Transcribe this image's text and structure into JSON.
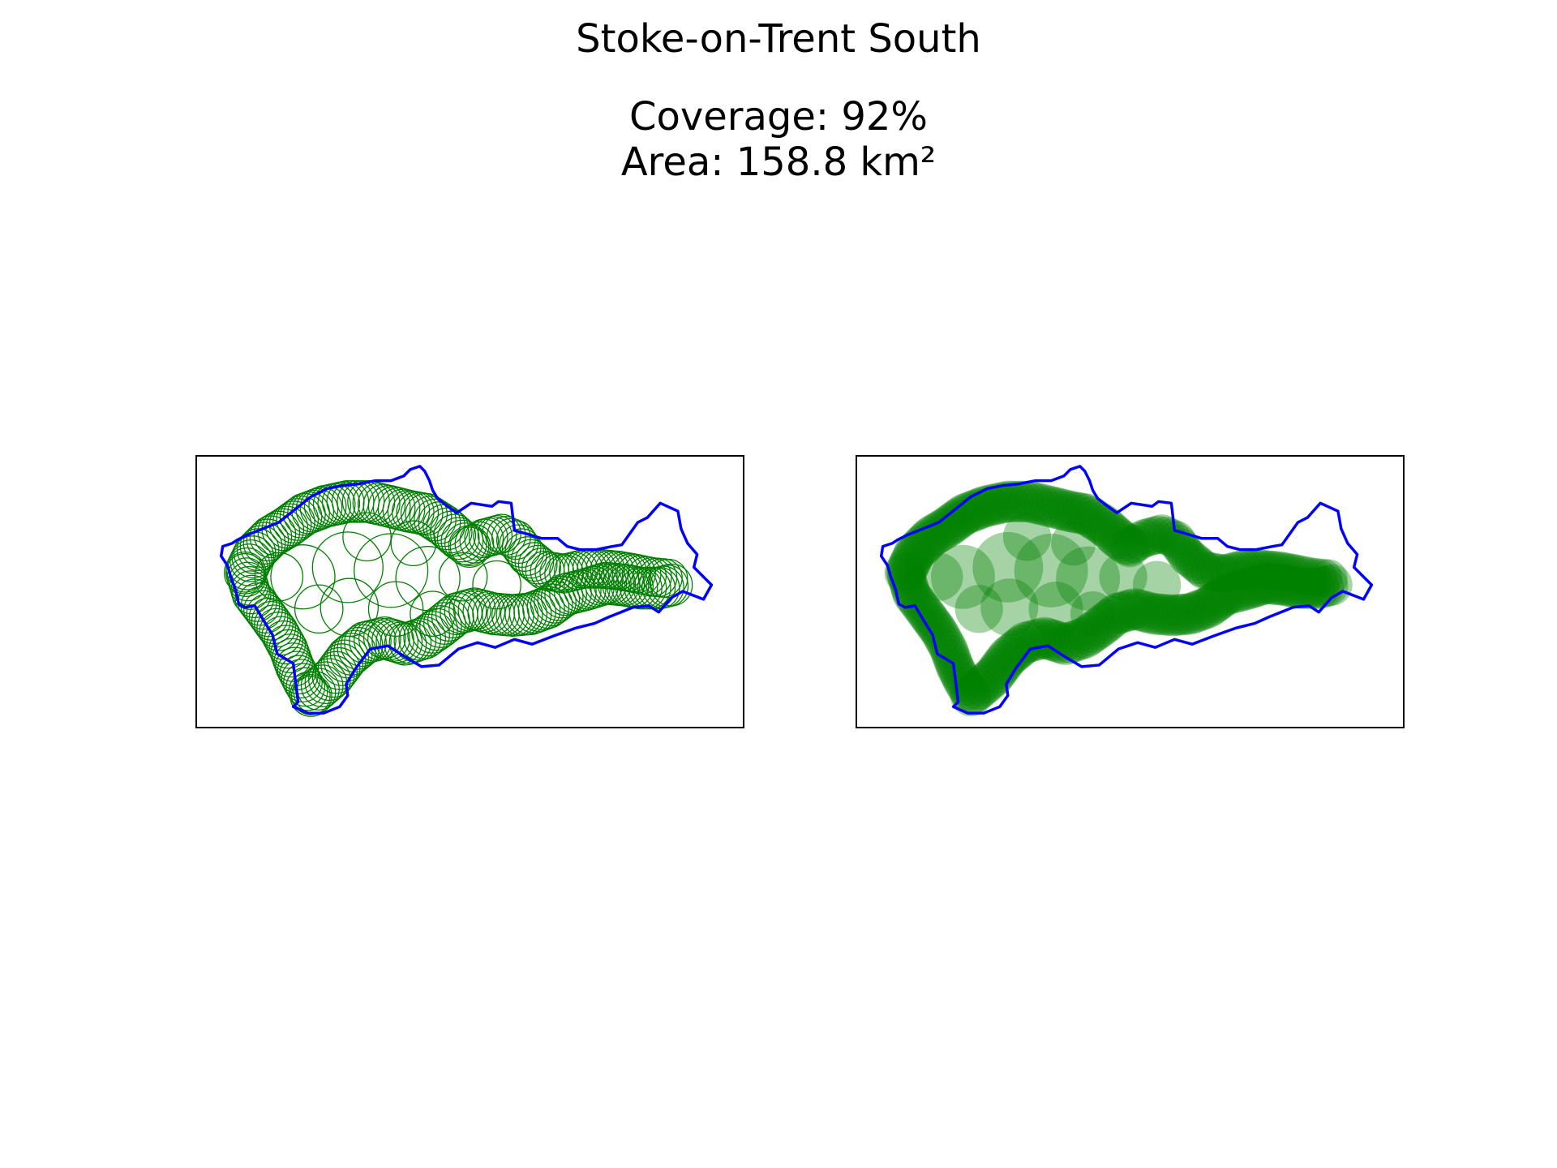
{
  "figure": {
    "title": "Stoke-on-Trent South",
    "coverage_text": "Coverage: 92%",
    "area_text": "Area: 158.8 km²"
  },
  "map": {
    "boundary_color": "#0000ff",
    "coverage_color": "#008000",
    "frame_color": "#000000",
    "panels": [
      {
        "style": "outline",
        "description_icon": "coverage-circles-outline"
      },
      {
        "style": "filled",
        "description_icon": "coverage-circles-filled"
      }
    ]
  }
}
